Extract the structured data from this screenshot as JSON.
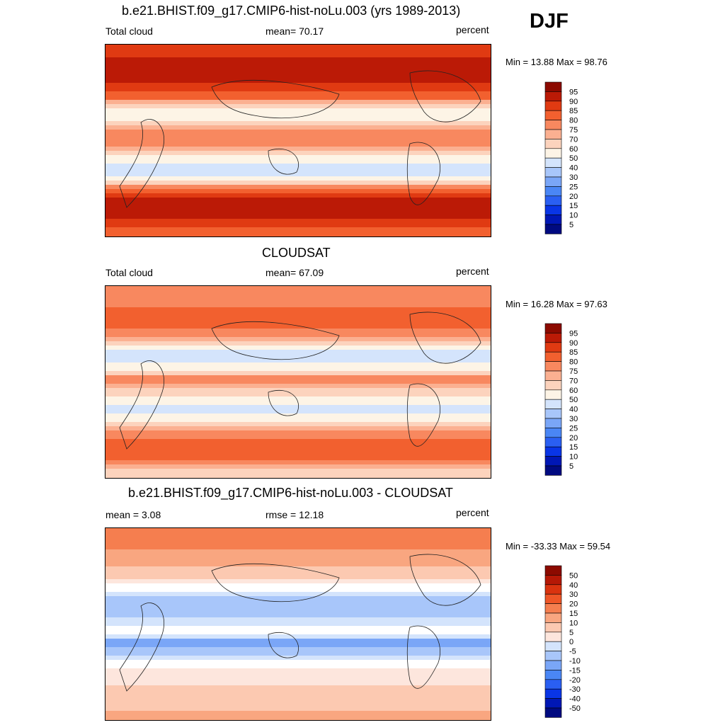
{
  "season": "DJF",
  "colors": {
    "abs_palette": [
      "#000a80",
      "#0017b5",
      "#0935e6",
      "#2a5ff2",
      "#4a86f5",
      "#7aa6f7",
      "#a8c6fa",
      "#d4e4fc",
      "#fdf4e6",
      "#fcd3bd",
      "#fbb091",
      "#f8885f",
      "#f2602f",
      "#e03a12",
      "#bb1a06",
      "#8c0a00"
    ],
    "diff_palette": [
      "#000a80",
      "#0017b5",
      "#0935e6",
      "#2a5ff2",
      "#4a86f5",
      "#7aa6f7",
      "#a8c6fa",
      "#d4e4fc",
      "#ffffff",
      "#fde6dd",
      "#fcc9b1",
      "#f9a680",
      "#f57e4f",
      "#ef5627",
      "#da330f",
      "#b51806",
      "#8c0a00"
    ]
  },
  "panels": [
    {
      "title": "b.e21.BHIST.f09_g17.CMIP6-hist-noLu.003 (yrs 1989-2013)",
      "left_label": "Total cloud",
      "center_label": "mean=  70.17",
      "right_label": "percent",
      "minmax": "Min =  13.88 Max =  98.76",
      "colorbar_labels": [
        "95",
        "90",
        "85",
        "80",
        "75",
        "70",
        "60",
        "50",
        "40",
        "30",
        "25",
        "20",
        "15",
        "10",
        "5"
      ]
    },
    {
      "title": "CLOUDSAT",
      "left_label": "Total cloud",
      "center_label": "mean=  67.09",
      "right_label": "percent",
      "minmax": "Min =  16.28 Max =  97.63",
      "colorbar_labels": [
        "95",
        "90",
        "85",
        "80",
        "75",
        "70",
        "60",
        "50",
        "40",
        "30",
        "25",
        "20",
        "15",
        "10",
        "5"
      ]
    },
    {
      "title": "b.e21.BHIST.f09_g17.CMIP6-hist-noLu.003 - CLOUDSAT",
      "left_label": "mean =   3.08",
      "center_label": "rmse =  12.18",
      "right_label": "percent",
      "minmax": "Min = -33.33 Max =  59.54",
      "colorbar_labels": [
        "50",
        "40",
        "30",
        "20",
        "15",
        "10",
        "5",
        "0",
        "-5",
        "-10",
        "-15",
        "-20",
        "-30",
        "-40",
        "-50"
      ]
    }
  ],
  "chart_data": [
    {
      "type": "heatmap",
      "title": "b.e21.BHIST.f09_g17.CMIP6-hist-noLu.003 (yrs 1989-2013)",
      "variable": "Total cloud",
      "units": "percent",
      "mean": 70.17,
      "min": 13.88,
      "max": 98.76,
      "levels": [
        5,
        10,
        15,
        20,
        25,
        30,
        40,
        50,
        60,
        70,
        75,
        80,
        85,
        90,
        95
      ],
      "zonal_profile": {
        "lat": [
          90,
          70,
          55,
          40,
          28,
          15,
          5,
          -5,
          -15,
          -28,
          -40,
          -55,
          -70,
          -90
        ],
        "value": [
          88,
          92,
          90,
          82,
          50,
          70,
          80,
          75,
          55,
          45,
          75,
          95,
          90,
          80
        ]
      }
    },
    {
      "type": "heatmap",
      "title": "CLOUDSAT",
      "variable": "Total cloud",
      "units": "percent",
      "mean": 67.09,
      "min": 16.28,
      "max": 97.63,
      "levels": [
        5,
        10,
        15,
        20,
        25,
        30,
        40,
        50,
        60,
        70,
        75,
        80,
        85,
        90,
        95
      ],
      "zonal_profile": {
        "lat": [
          90,
          70,
          55,
          40,
          28,
          15,
          5,
          -5,
          -15,
          -28,
          -40,
          -55,
          -70,
          -90
        ],
        "value": [
          75,
          80,
          82,
          72,
          40,
          55,
          80,
          68,
          52,
          48,
          70,
          85,
          80,
          60
        ]
      }
    },
    {
      "type": "heatmap",
      "title": "b.e21.BHIST.f09_g17.CMIP6-hist-noLu.003 - CLOUDSAT",
      "units": "percent",
      "mean": 3.08,
      "rmse": 12.18,
      "min": -33.33,
      "max": 59.54,
      "levels": [
        -50,
        -40,
        -30,
        -20,
        -15,
        -10,
        -5,
        0,
        5,
        10,
        15,
        20,
        30,
        40,
        50
      ],
      "zonal_profile": {
        "lat": [
          90,
          70,
          55,
          40,
          28,
          15,
          5,
          -5,
          -15,
          -28,
          -40,
          -55,
          -70,
          -90
        ],
        "value": [
          25,
          20,
          15,
          8,
          -5,
          -10,
          -3,
          5,
          -15,
          -5,
          8,
          10,
          12,
          20
        ]
      }
    }
  ]
}
